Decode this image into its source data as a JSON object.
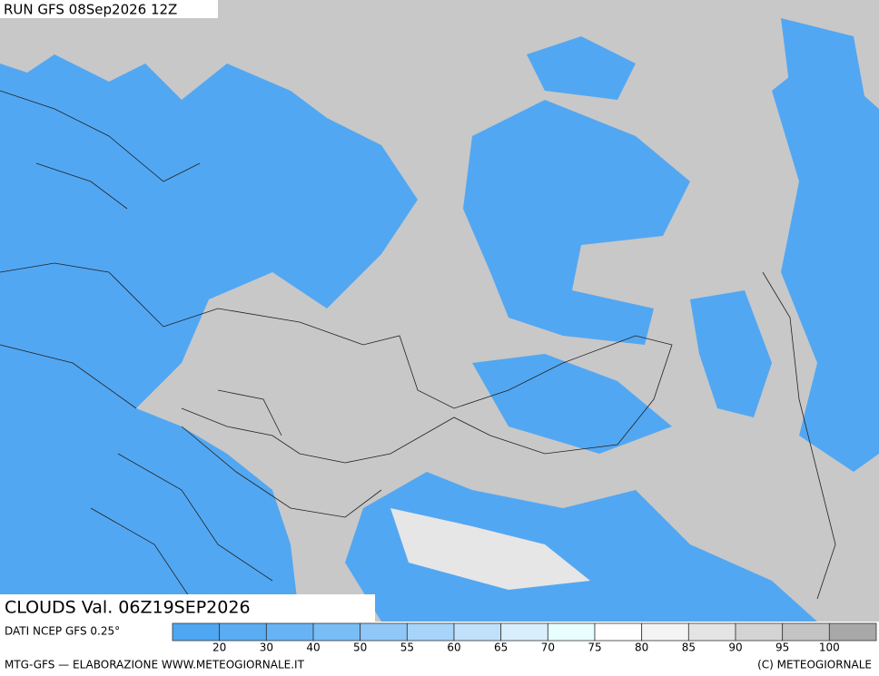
{
  "header": {
    "run": "RUN GFS 08Sep2026 12Z",
    "title": "CLOUDS Val. 06Z19SEP2026",
    "source": "DATI NCEP GFS 0.25°"
  },
  "legend": {
    "labels": [
      "20",
      "30",
      "40",
      "50",
      "55",
      "60",
      "65",
      "70",
      "75",
      "80",
      "85",
      "90",
      "95",
      "100"
    ],
    "colors": [
      "#4fa6f2",
      "#5aacf3",
      "#67b3f5",
      "#79bdf6",
      "#8fc8f8",
      "#a7d4f9",
      "#c0e1fb",
      "#d9eefd",
      "#e8ffff",
      "#ffffff",
      "#f4f4f4",
      "#e4e4e4",
      "#d4d4d4",
      "#c4c4c4",
      "#a8a8a8"
    ]
  },
  "footer": {
    "left": "MTG-GFS — ELABORAZIONE WWW.METEOGIORNALE.IT",
    "right": "(C) METEOGIORNALE"
  }
}
